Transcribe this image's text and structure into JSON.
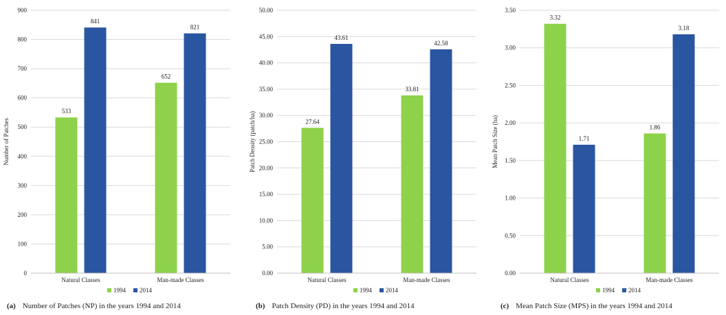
{
  "chart_data": [
    {
      "type": "bar",
      "panel": "(a)",
      "title": "Number of Patches (NP) in the years 1994 and 2014",
      "ylabel": "Number of Patches",
      "xlabel": "",
      "categories": [
        "Natural Classes",
        "Man-made Classes"
      ],
      "series": [
        {
          "name": "1994",
          "values": [
            533,
            652
          ],
          "labels": [
            "533",
            "652"
          ],
          "color": "#8dd24a"
        },
        {
          "name": "2014",
          "values": [
            841,
            821
          ],
          "labels": [
            "841",
            "821"
          ],
          "color": "#2a55a0"
        }
      ],
      "ylim": [
        0,
        900
      ],
      "yticks": [
        "0",
        "100",
        "200",
        "300",
        "400",
        "500",
        "600",
        "700",
        "800",
        "900"
      ],
      "grid": true,
      "legend": "bottom-center"
    },
    {
      "type": "bar",
      "panel": "(b)",
      "title": "Patch Density (PD) in the years 1994 and 2014",
      "ylabel": "Patch Density (patch/ha)",
      "xlabel": "",
      "categories": [
        "Natural Classes",
        "Man-made Classes"
      ],
      "series": [
        {
          "name": "1994",
          "values": [
            27.64,
            33.81
          ],
          "labels": [
            "27.64",
            "33.81"
          ],
          "color": "#8dd24a"
        },
        {
          "name": "2014",
          "values": [
            43.61,
            42.58
          ],
          "labels": [
            "43.61",
            "42.58"
          ],
          "color": "#2a55a0"
        }
      ],
      "ylim": [
        0,
        50
      ],
      "yticks": [
        "0.00",
        "5.00",
        "10.00",
        "15.00",
        "20.00",
        "25.00",
        "30.00",
        "35.00",
        "40.00",
        "45.00",
        "50.00"
      ],
      "grid": true,
      "legend": "bottom-center"
    },
    {
      "type": "bar",
      "panel": "(c)",
      "title": "Mean Patch Size (MPS) in the years 1994 and 2014",
      "ylabel": "Mean Patch Size (ha)",
      "xlabel": "",
      "categories": [
        "Natural Classes",
        "Man-made Classes"
      ],
      "series": [
        {
          "name": "1994",
          "values": [
            3.32,
            1.86
          ],
          "labels": [
            "3.32",
            "1.86"
          ],
          "color": "#8dd24a"
        },
        {
          "name": "2014",
          "values": [
            1.71,
            3.18
          ],
          "labels": [
            "1.71",
            "3.18"
          ],
          "color": "#2a55a0"
        }
      ],
      "ylim": [
        0,
        3.5
      ],
      "yticks": [
        "0.00",
        "0.50",
        "1.00",
        "1.50",
        "2.00",
        "2.50",
        "3.00",
        "3.50"
      ],
      "grid": true,
      "legend": "bottom-center"
    }
  ]
}
